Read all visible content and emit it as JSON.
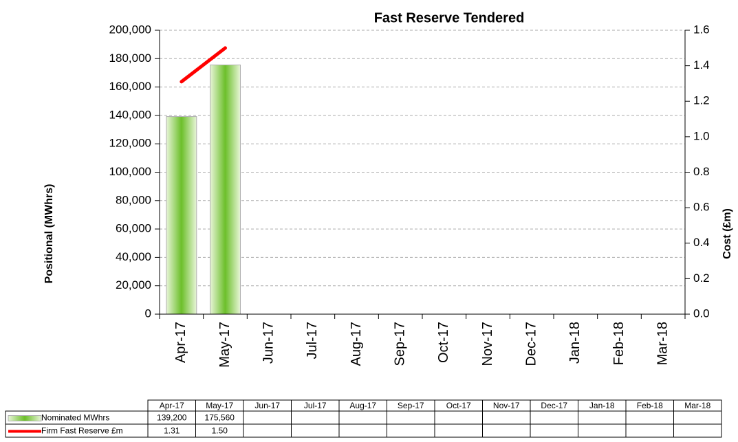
{
  "chart_data": {
    "type": "bar",
    "title": "Fast Reserve Tendered",
    "y_label": "Positional (MWhrs)",
    "y2_label": "Cost (£m)",
    "categories": [
      "Apr-17",
      "May-17",
      "Jun-17",
      "Jul-17",
      "Aug-17",
      "Sep-17",
      "Oct-17",
      "Nov-17",
      "Dec-17",
      "Jan-18",
      "Feb-18",
      "Mar-18"
    ],
    "series": [
      {
        "name": "Nominated MWhrs",
        "type": "bar",
        "color": "#7ac143",
        "values": [
          139200,
          175560,
          null,
          null,
          null,
          null,
          null,
          null,
          null,
          null,
          null,
          null
        ],
        "value_labels": [
          "139,200",
          "175,560",
          null,
          null,
          null,
          null,
          null,
          null,
          null,
          null,
          null,
          null
        ]
      },
      {
        "name": "Firm Fast Reserve £m",
        "type": "line",
        "axis": "y2",
        "color": "#ff0000",
        "values": [
          1.31,
          1.5,
          null,
          null,
          null,
          null,
          null,
          null,
          null,
          null,
          null,
          null
        ],
        "value_labels": [
          "1.31",
          "1.50",
          null,
          null,
          null,
          null,
          null,
          null,
          null,
          null,
          null,
          null
        ]
      }
    ],
    "ylim": [
      0,
      200000
    ],
    "yticks": [
      0,
      {
        "value": 20000,
        "label": "20,000"
      },
      {
        "value": 40000,
        "label": "40,000"
      },
      {
        "value": 60000,
        "label": "60,000"
      },
      {
        "value": 80000,
        "label": "80,000"
      },
      {
        "value": 100000,
        "label": "100,000"
      },
      {
        "value": 120000,
        "label": "120,000"
      },
      {
        "value": 140000,
        "label": "140,000"
      },
      {
        "value": 160000,
        "label": "160,000"
      },
      {
        "value": 180000,
        "label": "180,000"
      },
      {
        "value": 200000,
        "label": "200,000"
      }
    ],
    "y2lim": [
      0,
      1.6
    ],
    "y2ticks": [
      {
        "value": 0,
        "label": "0.0"
      },
      0.2,
      0.4,
      0.6,
      0.8,
      {
        "value": 1,
        "label": "1.0"
      },
      1.2,
      1.4,
      1.6
    ],
    "grid": true
  }
}
